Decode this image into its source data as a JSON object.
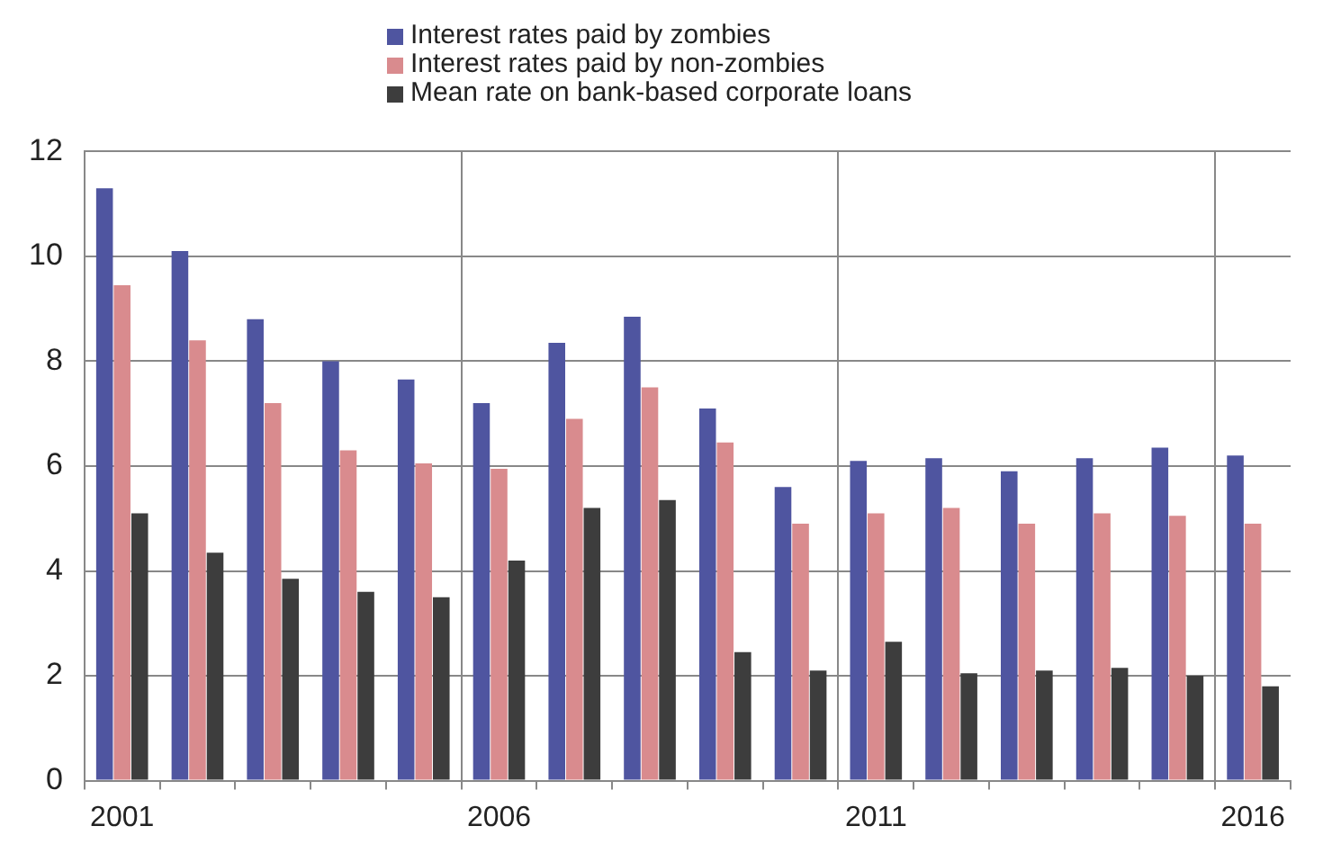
{
  "chart_data": {
    "type": "bar",
    "categories": [
      "2001",
      null,
      null,
      null,
      null,
      "2006",
      null,
      null,
      null,
      null,
      "2011",
      null,
      null,
      null,
      null,
      "2016"
    ],
    "series": [
      {
        "name": "Interest rates paid by zombies",
        "color": "#4f55a0",
        "values": [
          11.3,
          10.1,
          8.8,
          8.0,
          7.65,
          7.2,
          8.35,
          8.85,
          7.1,
          5.6,
          6.1,
          6.15,
          5.9,
          6.15,
          6.35,
          6.2
        ]
      },
      {
        "name": "Interest rates paid by non-zombies",
        "color": "#d98b8e",
        "values": [
          9.45,
          8.4,
          7.2,
          6.3,
          6.05,
          5.95,
          6.9,
          7.5,
          6.45,
          4.9,
          5.1,
          5.2,
          4.9,
          5.1,
          5.05,
          4.9
        ]
      },
      {
        "name": "Mean rate on bank-based corporate loans",
        "color": "#3d3d3d",
        "values": [
          5.1,
          4.35,
          3.85,
          3.6,
          3.5,
          4.2,
          5.2,
          5.35,
          2.45,
          2.1,
          2.65,
          2.05,
          2.1,
          2.15,
          2.0,
          1.8
        ]
      }
    ],
    "ylim": [
      0,
      12
    ],
    "yticks": [
      0,
      2,
      4,
      6,
      8,
      10,
      12
    ],
    "grid": true,
    "legend": "top"
  }
}
